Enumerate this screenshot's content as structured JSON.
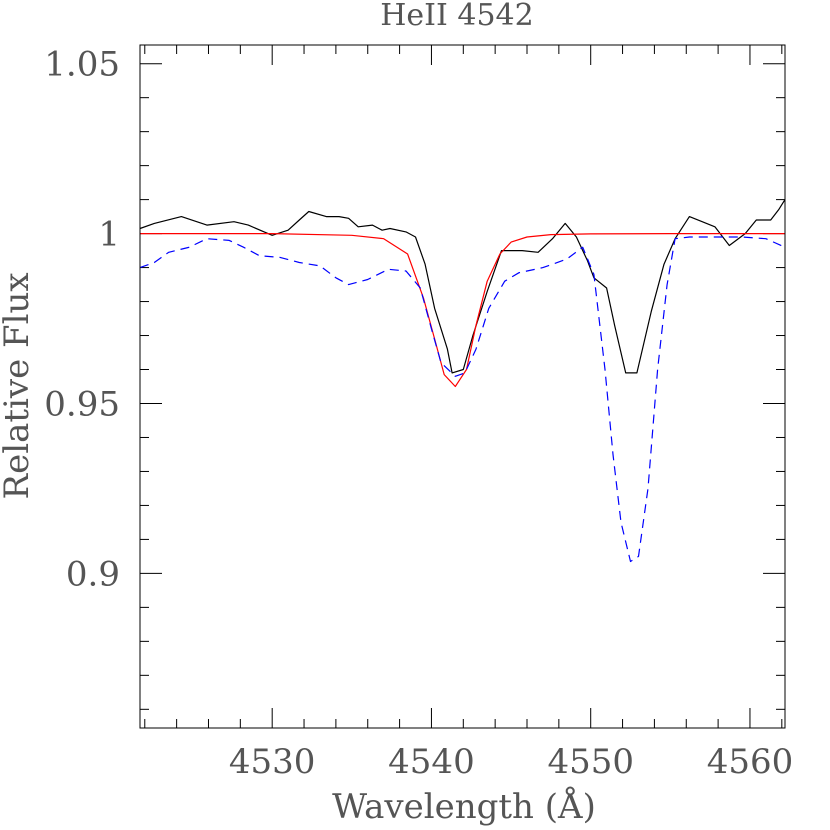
{
  "chart_data": {
    "type": "line",
    "title": "HeII 4542",
    "xlabel": "Wavelength (Å)",
    "ylabel": "Relative Flux",
    "xlim": [
      4521.7,
      4562.2
    ],
    "ylim": [
      0.8545,
      1.0555
    ],
    "x_ticks": [
      4530,
      4540,
      4550,
      4560
    ],
    "x_tick_labels": [
      "4530",
      "4540",
      "4550",
      "4560"
    ],
    "y_ticks": [
      0.9,
      0.95,
      1,
      1.05
    ],
    "y_tick_labels": [
      "0.9",
      "0.95",
      "1",
      "1.05"
    ],
    "x_minor_step": 2,
    "y_minor_step": 0.01,
    "grid": false,
    "series": [
      {
        "style": "solid",
        "color": "#000000",
        "x": [
          4521.7,
          4522.6,
          4524.3,
          4525.9,
          4527.6,
          4528.5,
          4529.5,
          4530.0,
          4531.0,
          4531.7,
          4532.3,
          4533.4,
          4534.2,
          4534.8,
          4535.4,
          4536.3,
          4536.9,
          4537.4,
          4538.4,
          4539.0,
          4539.6,
          4540.2,
          4541.0,
          4541.3,
          4542.0,
          4542.6,
          4543.5,
          4544.4,
          4545.7,
          4546.7,
          4547.6,
          4548.4,
          4549.1,
          4549.8,
          4550.2,
          4551.0,
          4551.5,
          4552.2,
          4552.9,
          4553.8,
          4554.6,
          4555.3,
          4556.2,
          4557.0,
          4557.8,
          4558.7,
          4559.7,
          4560.4,
          4561.3,
          4561.8,
          4562.2
        ],
        "y": [
          1.0015,
          1.003,
          1.005,
          1.0025,
          1.0035,
          1.0025,
          1.0005,
          0.9995,
          1.001,
          1.004,
          1.0065,
          1.005,
          1.005,
          1.0045,
          1.002,
          1.0025,
          1.001,
          1.0015,
          1.0005,
          0.999,
          0.991,
          0.978,
          0.966,
          0.959,
          0.96,
          0.97,
          0.983,
          0.995,
          0.995,
          0.9945,
          0.9985,
          1.003,
          0.999,
          0.992,
          0.987,
          0.984,
          0.973,
          0.959,
          0.959,
          0.977,
          0.991,
          0.9985,
          1.005,
          1.0035,
          1.002,
          0.9965,
          1.0,
          1.004,
          1.004,
          1.007,
          1.01
        ]
      },
      {
        "style": "solid",
        "color": "#ff0000",
        "x": [
          4521.7,
          4530.0,
          4535.0,
          4537.0,
          4538.5,
          4539.5,
          4540.2,
          4540.8,
          4541.5,
          4542.2,
          4542.8,
          4543.5,
          4544.3,
          4545.0,
          4546.0,
          4547.5,
          4550.0,
          4555.0,
          4562.2
        ],
        "y": [
          1.0,
          1.0,
          0.9995,
          0.9985,
          0.994,
          0.981,
          0.969,
          0.9585,
          0.955,
          0.96,
          0.973,
          0.986,
          0.994,
          0.9975,
          0.999,
          0.9997,
          0.9999,
          1.0,
          1.0
        ]
      },
      {
        "style": "dashed",
        "color": "#0000ff",
        "x": [
          4521.7,
          4522.6,
          4523.5,
          4524.8,
          4525.9,
          4527.3,
          4528.2,
          4529.2,
          4530.5,
          4531.7,
          4533.0,
          4534.0,
          4534.8,
          4536.0,
          4537.3,
          4538.4,
          4539.3,
          4540.0,
          4540.6,
          4541.5,
          4542.1,
          4542.8,
          4543.6,
          4544.6,
          4545.5,
          4547.0,
          4548.5,
          4549.5,
          4550.2,
          4550.9,
          4551.4,
          4551.9,
          4552.5,
          4553.0,
          4553.6,
          4554.2,
          4554.8,
          4555.3,
          4556.2,
          4558.0,
          4559.5,
          4561.0,
          4562.2
        ],
        "y": [
          0.99,
          0.9915,
          0.9945,
          0.996,
          0.9985,
          0.998,
          0.996,
          0.9935,
          0.993,
          0.9915,
          0.9905,
          0.987,
          0.985,
          0.9865,
          0.9895,
          0.989,
          0.984,
          0.972,
          0.962,
          0.958,
          0.959,
          0.966,
          0.978,
          0.986,
          0.9885,
          0.99,
          0.9925,
          0.996,
          0.988,
          0.96,
          0.935,
          0.915,
          0.9035,
          0.905,
          0.925,
          0.96,
          0.985,
          0.9985,
          0.999,
          0.999,
          0.999,
          0.9985,
          0.996
        ]
      }
    ]
  }
}
